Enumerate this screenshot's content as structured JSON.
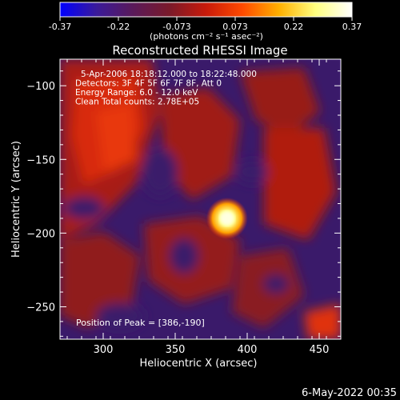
{
  "colorbar": {
    "ticks": [
      "-0.37",
      "-0.22",
      "-0.073",
      "0.073",
      "0.22",
      "0.37"
    ],
    "units": "(photons cm⁻² s⁻¹ asec⁻²)",
    "colors": [
      "#0000ff",
      "#3a1a9a",
      "#5a1a5a",
      "#7a1a2a",
      "#c81a0a",
      "#ff4a00",
      "#ffb000",
      "#ffff80",
      "#ffffff"
    ]
  },
  "chart_data": {
    "type": "heatmap",
    "title": "Reconstructed RHESSI Image",
    "xlabel": "Heliocentric X (arcsec)",
    "ylabel": "Heliocentric Y (arcsec)",
    "xlim": [
      270,
      465
    ],
    "ylim": [
      -272,
      -82
    ],
    "x_ticks": [
      300,
      350,
      400,
      450
    ],
    "y_ticks": [
      -100,
      -150,
      -200,
      -250
    ],
    "peak": {
      "x": 386,
      "y": -190
    },
    "annotations": [
      "5-Apr-2006 18:18:12.000 to 18:22:48.000",
      "Detectors: 3F 4F 5F 6F 7F 8F, Att 0",
      "Energy Range: 6.0 - 12.0 keV",
      "Clean     Total counts: 2.78E+05"
    ],
    "peak_label": "Position of Peak = [386,-190]"
  },
  "footer": {
    "date": "6-May-2022 00:35"
  }
}
